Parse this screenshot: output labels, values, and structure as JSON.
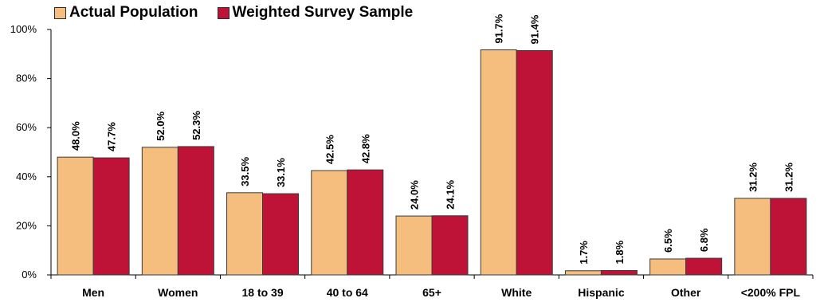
{
  "colors": {
    "actual": "#F5BE7F",
    "weighted": "#BE1337",
    "bar_outline": "#3a3a3a",
    "axis": "#000000"
  },
  "legend": {
    "actual": "Actual Population",
    "weighted": "Weighted Survey Sample"
  },
  "chart_data": {
    "type": "bar",
    "categories": [
      "Men",
      "Women",
      "18 to 39",
      "40 to 64",
      "65+",
      "White",
      "Hispanic",
      "Other",
      "<200% FPL"
    ],
    "series": [
      {
        "name": "Actual Population",
        "values": [
          48.0,
          52.0,
          33.5,
          42.5,
          24.0,
          91.7,
          1.7,
          6.5,
          31.2
        ],
        "labels": [
          "48.0%",
          "52.0%",
          "33.5%",
          "42.5%",
          "24.0%",
          "91.7%",
          "1.7%",
          "6.5%",
          "31.2%"
        ]
      },
      {
        "name": "Weighted Survey Sample",
        "values": [
          47.7,
          52.3,
          33.1,
          42.8,
          24.1,
          91.4,
          1.8,
          6.8,
          31.2
        ],
        "labels": [
          "47.7%",
          "52.3%",
          "33.1%",
          "42.8%",
          "24.1%",
          "91.4%",
          "1.8%",
          "6.8%",
          "31.2%"
        ]
      }
    ],
    "yticks": [
      0,
      20,
      40,
      60,
      80,
      100
    ],
    "ytick_labels": [
      "0%",
      "20%",
      "40%",
      "60%",
      "80%",
      "100%"
    ],
    "ylim": [
      0,
      100
    ],
    "grid": false,
    "legend_position": "top-left"
  }
}
